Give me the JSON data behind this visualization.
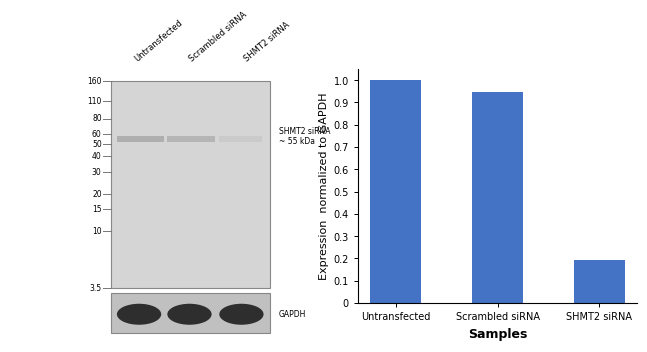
{
  "categories": [
    "Untransfected",
    "Scrambled siRNA",
    "SHMT2 siRNA"
  ],
  "values": [
    1.0,
    0.945,
    0.195
  ],
  "bar_color": "#4472C4",
  "ylabel": "Expression  normalized to GAPDH",
  "xlabel": "Samples",
  "ylim": [
    0,
    1.05
  ],
  "yticks": [
    0,
    0.1,
    0.2,
    0.3,
    0.4,
    0.5,
    0.6,
    0.7,
    0.8,
    0.9,
    1.0
  ],
  "wb_col_labels": [
    "Untransfected",
    "Scrambled siRNA",
    "SHMT2 siRNA"
  ],
  "wb_mw_labels": [
    "160",
    "110",
    "80",
    "60",
    "50",
    "40",
    "30",
    "20",
    "15",
    "10",
    "3.5"
  ],
  "wb_annotation_shmt2": "SHMT2 siRNA\n~ 55 kDa",
  "wb_annotation_gapdh": "GAPDH",
  "background_color": "#ffffff",
  "gel_bg": "#d5d5d5",
  "gapdh_panel_bg": "#c0c0c0",
  "tick_fontsize": 7,
  "label_fontsize": 8,
  "xlabel_fontsize": 9,
  "wb_fontsize": 6
}
